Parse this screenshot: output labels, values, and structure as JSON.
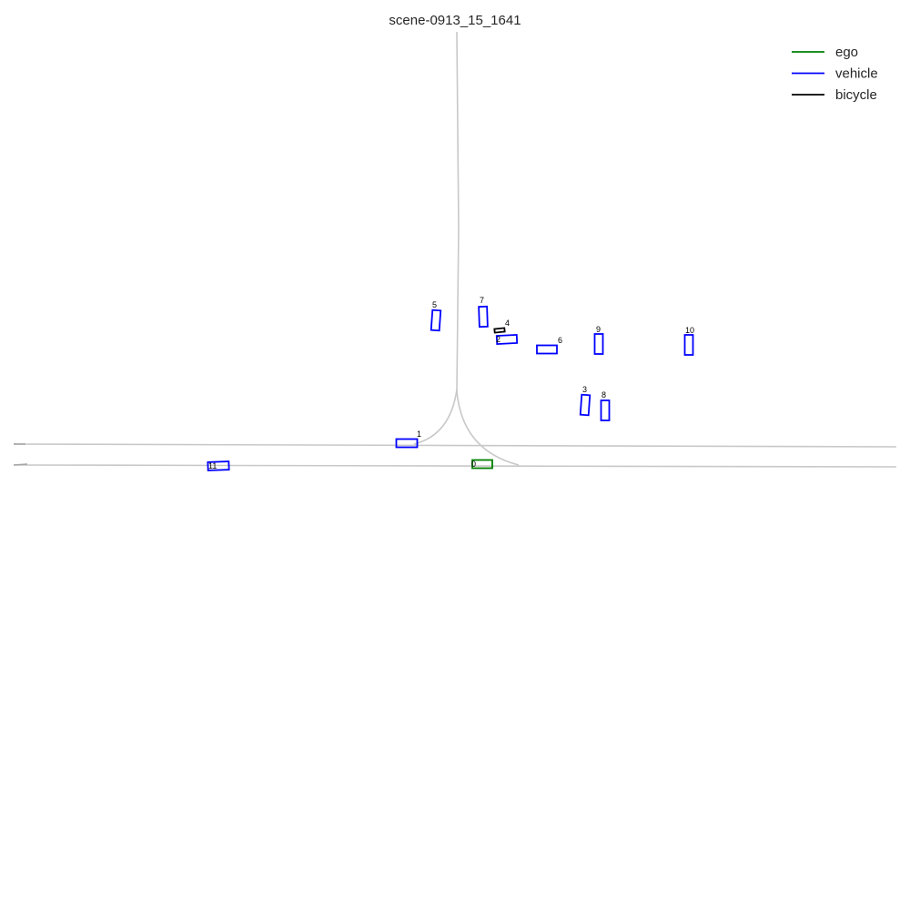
{
  "title": "scene-0913_15_1641",
  "colors": {
    "ego": "#008000",
    "vehicle": "#0000ff",
    "bicycle": "#000000",
    "lane": "#c8c8c8"
  },
  "legend": [
    {
      "label": "ego",
      "category": "ego"
    },
    {
      "label": "vehicle",
      "category": "vehicle"
    },
    {
      "label": "bicycle",
      "category": "bicycle"
    }
  ],
  "agents": [
    {
      "id": "0",
      "category": "ego"
    },
    {
      "id": "1",
      "category": "vehicle"
    },
    {
      "id": "2",
      "category": "vehicle"
    },
    {
      "id": "3",
      "category": "vehicle"
    },
    {
      "id": "4",
      "category": "bicycle"
    },
    {
      "id": "5",
      "category": "vehicle"
    },
    {
      "id": "6",
      "category": "vehicle"
    },
    {
      "id": "7",
      "category": "vehicle"
    },
    {
      "id": "8",
      "category": "vehicle"
    },
    {
      "id": "9",
      "category": "vehicle"
    },
    {
      "id": "10",
      "category": "vehicle"
    },
    {
      "id": "11",
      "category": "vehicle"
    }
  ]
}
